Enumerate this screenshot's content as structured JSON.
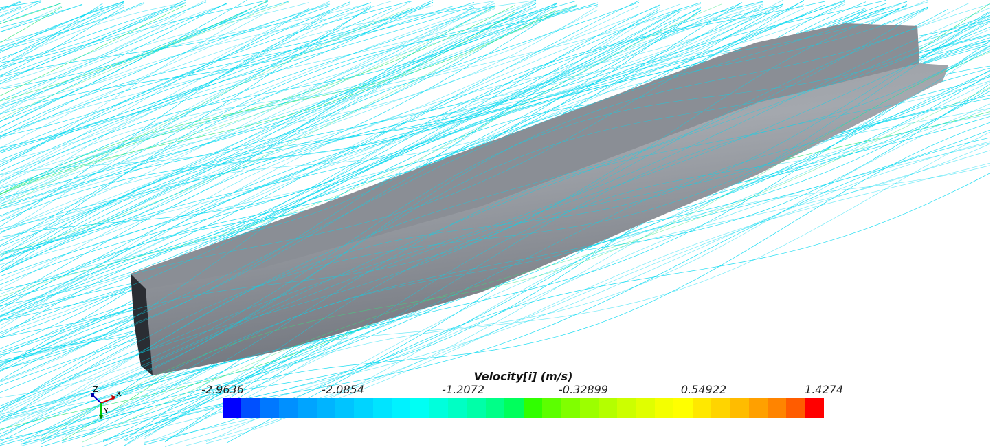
{
  "legend": {
    "title": "Velocity[i] (m/s)",
    "ticks": [
      "-2.9636",
      "-2.0854",
      "-1.2072",
      "-0.32899",
      "0.54922",
      "1.4274"
    ],
    "min": -2.9636,
    "max": 1.4274,
    "colormap": [
      "#0000ff",
      "#0050ff",
      "#0078ff",
      "#0090ff",
      "#00a4ff",
      "#00b4ff",
      "#00c4ff",
      "#00d4ff",
      "#00e4ff",
      "#00f2ff",
      "#00fff4",
      "#00ffdc",
      "#00ffc4",
      "#00ffa8",
      "#00ff88",
      "#00ff5c",
      "#30ff00",
      "#5cff00",
      "#80ff00",
      "#9cff00",
      "#b4ff00",
      "#ccff00",
      "#e0ff00",
      "#f4ff00",
      "#ffff00",
      "#ffe800",
      "#ffd400",
      "#ffbc00",
      "#ffa000",
      "#ff8400",
      "#ff5c00",
      "#ff0000"
    ]
  },
  "axes_triad": {
    "x": "X",
    "y": "Y",
    "z": "Z"
  },
  "colors": {
    "hull": "#80848c",
    "streamline": "#00d8f0",
    "background": "#ffffff"
  }
}
